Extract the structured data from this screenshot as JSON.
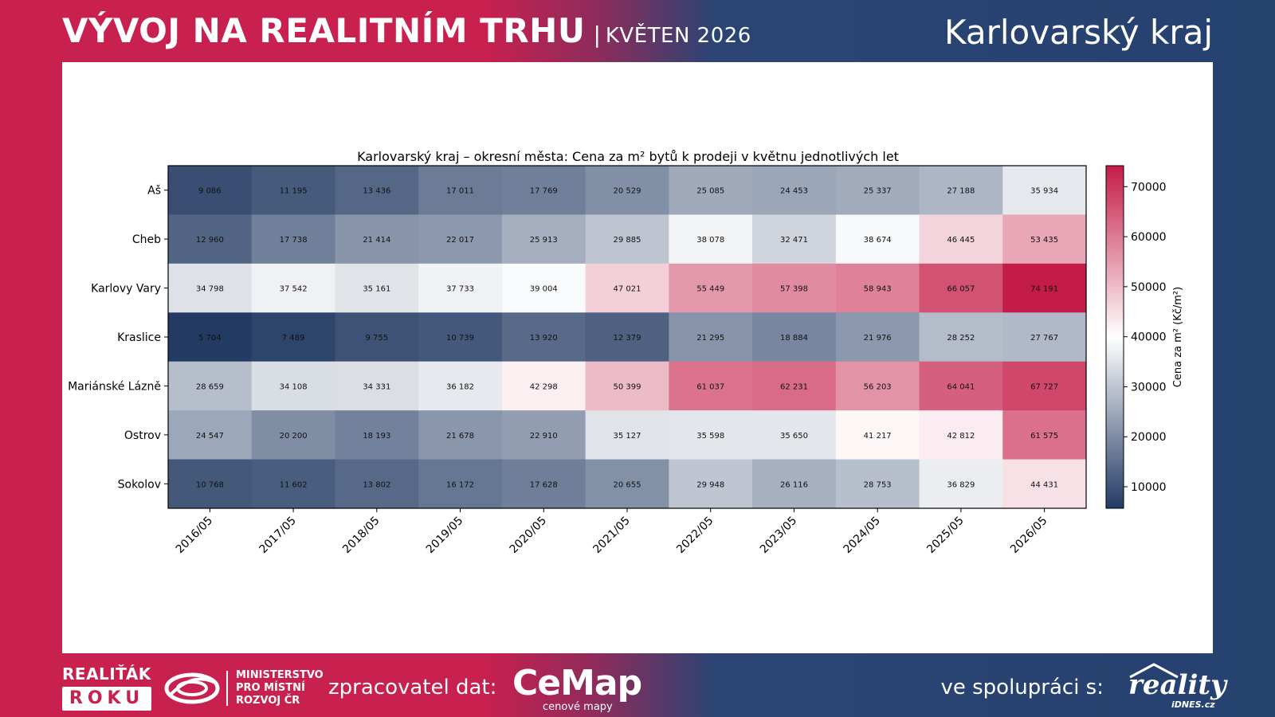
{
  "header": {
    "title": "VÝVOJ NA REALITNÍM TRHU",
    "separator": "|",
    "month": "KVĚTEN 2026",
    "region": "Karlovarský kraj"
  },
  "footer": {
    "realitak_line1": "REALIŤÁK",
    "realitak_line2": "ROKU",
    "ministry_lines": [
      "MINISTERSTVO",
      "PRO MÍSTNÍ",
      "ROZVOJ ČR"
    ],
    "processor_label": "zpracovatel dat:",
    "cemap_name": "CeMap",
    "cemap_tagline": "cenové mapy",
    "collab_label": "ve spolupráci s:",
    "reality_name": "reality",
    "reality_sub": "iDNES.cz"
  },
  "colors": {
    "brand_red": "#c8204f",
    "brand_blue": "#26426f",
    "cmap_low": "#233b63",
    "cmap_mid": "#ffffff",
    "cmap_high": "#c41c48"
  },
  "chart_data": {
    "type": "heatmap",
    "title": "Karlovarský kraj – okresní města: Cena za m² bytů k prodeji v květnu jednotlivých let",
    "x": [
      "2016/05",
      "2017/05",
      "2018/05",
      "2019/05",
      "2020/05",
      "2021/05",
      "2022/05",
      "2023/05",
      "2024/05",
      "2025/05",
      "2026/05"
    ],
    "y": [
      "Aš",
      "Cheb",
      "Karlovy Vary",
      "Kraslice",
      "Mariánské Lázně",
      "Ostrov",
      "Sokolov"
    ],
    "values": [
      [
        9086,
        11195,
        13436,
        17011,
        17769,
        20529,
        25085,
        24453,
        25337,
        27188,
        35934
      ],
      [
        12960,
        17738,
        21414,
        22017,
        25913,
        29885,
        38078,
        32471,
        38674,
        46445,
        53435
      ],
      [
        34798,
        37542,
        35161,
        37733,
        39004,
        47021,
        55449,
        57398,
        58943,
        66057,
        74191
      ],
      [
        5704,
        7489,
        9755,
        10739,
        13920,
        12379,
        21295,
        18884,
        21976,
        28252,
        27767
      ],
      [
        28659,
        34108,
        34331,
        36182,
        42298,
        50399,
        61037,
        62231,
        56203,
        64041,
        67727
      ],
      [
        24547,
        20200,
        18193,
        21678,
        22910,
        35127,
        35598,
        35650,
        41217,
        42812,
        61575
      ],
      [
        10768,
        11602,
        13802,
        16172,
        17628,
        20655,
        29948,
        26116,
        28753,
        36829,
        44431
      ]
    ],
    "value_labels": [
      [
        "9 086",
        "11 195",
        "13 436",
        "17 011",
        "17 769",
        "20 529",
        "25 085",
        "24 453",
        "25 337",
        "27 188",
        "35 934"
      ],
      [
        "12 960",
        "17 738",
        "21 414",
        "22 017",
        "25 913",
        "29 885",
        "38 078",
        "32 471",
        "38 674",
        "46 445",
        "53 435"
      ],
      [
        "34 798",
        "37 542",
        "35 161",
        "37 733",
        "39 004",
        "47 021",
        "55 449",
        "57 398",
        "58 943",
        "66 057",
        "74 191"
      ],
      [
        "5 704",
        "7 489",
        "9 755",
        "10 739",
        "13 920",
        "12 379",
        "21 295",
        "18 884",
        "21 976",
        "28 252",
        "27 767"
      ],
      [
        "28 659",
        "34 108",
        "34 331",
        "36 182",
        "42 298",
        "50 399",
        "61 037",
        "62 231",
        "56 203",
        "64 041",
        "67 727"
      ],
      [
        "24 547",
        "20 200",
        "18 193",
        "21 678",
        "22 910",
        "35 127",
        "35 598",
        "35 650",
        "41 217",
        "42 812",
        "61 575"
      ],
      [
        "10 768",
        "11 602",
        "13 802",
        "16 172",
        "17 628",
        "20 655",
        "29 948",
        "26 116",
        "28 753",
        "36 829",
        "44 431"
      ]
    ],
    "colorbar": {
      "label": "Cena za m² (Kč/m²)",
      "ticks": [
        10000,
        20000,
        30000,
        40000,
        50000,
        60000,
        70000
      ],
      "tick_labels": [
        "10000",
        "20000",
        "30000",
        "40000",
        "50000",
        "60000",
        "70000"
      ],
      "vmin": 5704,
      "vmax": 74191,
      "placement": "right"
    },
    "xlabel": "",
    "ylabel": ""
  }
}
